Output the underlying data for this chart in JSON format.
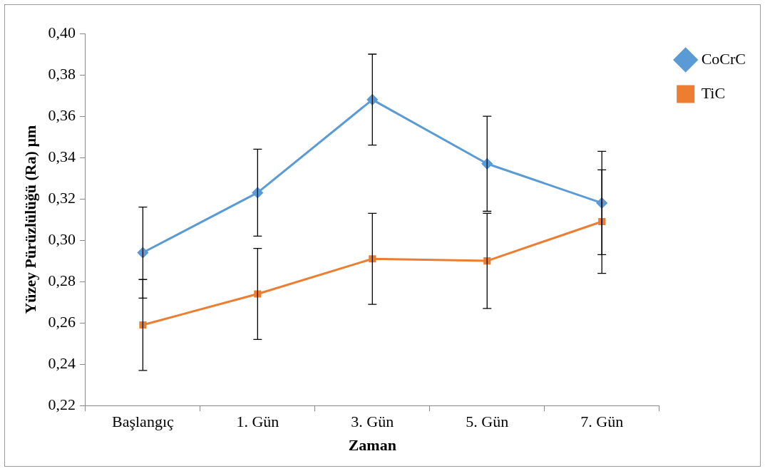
{
  "chart_data": {
    "type": "line",
    "xlabel": "Zaman",
    "ylabel": "Yüzey Pürüzlülüğü (Ra) µm",
    "categories": [
      "Başlangıç",
      "1. Gün",
      "3. Gün",
      "5. Gün",
      "7. Gün"
    ],
    "series": [
      {
        "name": "CoCrC",
        "color": "#5b9bd5",
        "marker": "diamond",
        "values": [
          0.294,
          0.323,
          0.368,
          0.337,
          0.318
        ],
        "errors": [
          0.022,
          0.021,
          0.022,
          0.023,
          0.025
        ]
      },
      {
        "name": "TiC",
        "color": "#ed7d31",
        "marker": "square",
        "values": [
          0.259,
          0.274,
          0.291,
          0.29,
          0.309
        ],
        "errors": [
          0.022,
          0.022,
          0.022,
          0.023,
          0.025
        ]
      }
    ],
    "ylim": [
      0.22,
      0.4
    ],
    "yticks": [
      {
        "value": 0.22,
        "label": "0,22"
      },
      {
        "value": 0.24,
        "label": "0,24"
      },
      {
        "value": 0.26,
        "label": "0,26"
      },
      {
        "value": 0.28,
        "label": "0,28"
      },
      {
        "value": 0.3,
        "label": "0,30"
      },
      {
        "value": 0.32,
        "label": "0,32"
      },
      {
        "value": 0.34,
        "label": "0,34"
      },
      {
        "value": 0.36,
        "label": "0,36"
      },
      {
        "value": 0.38,
        "label": "0,38"
      },
      {
        "value": 0.4,
        "label": "0,40"
      }
    ],
    "grid": false,
    "legend": "top right",
    "line_style": "solid"
  }
}
